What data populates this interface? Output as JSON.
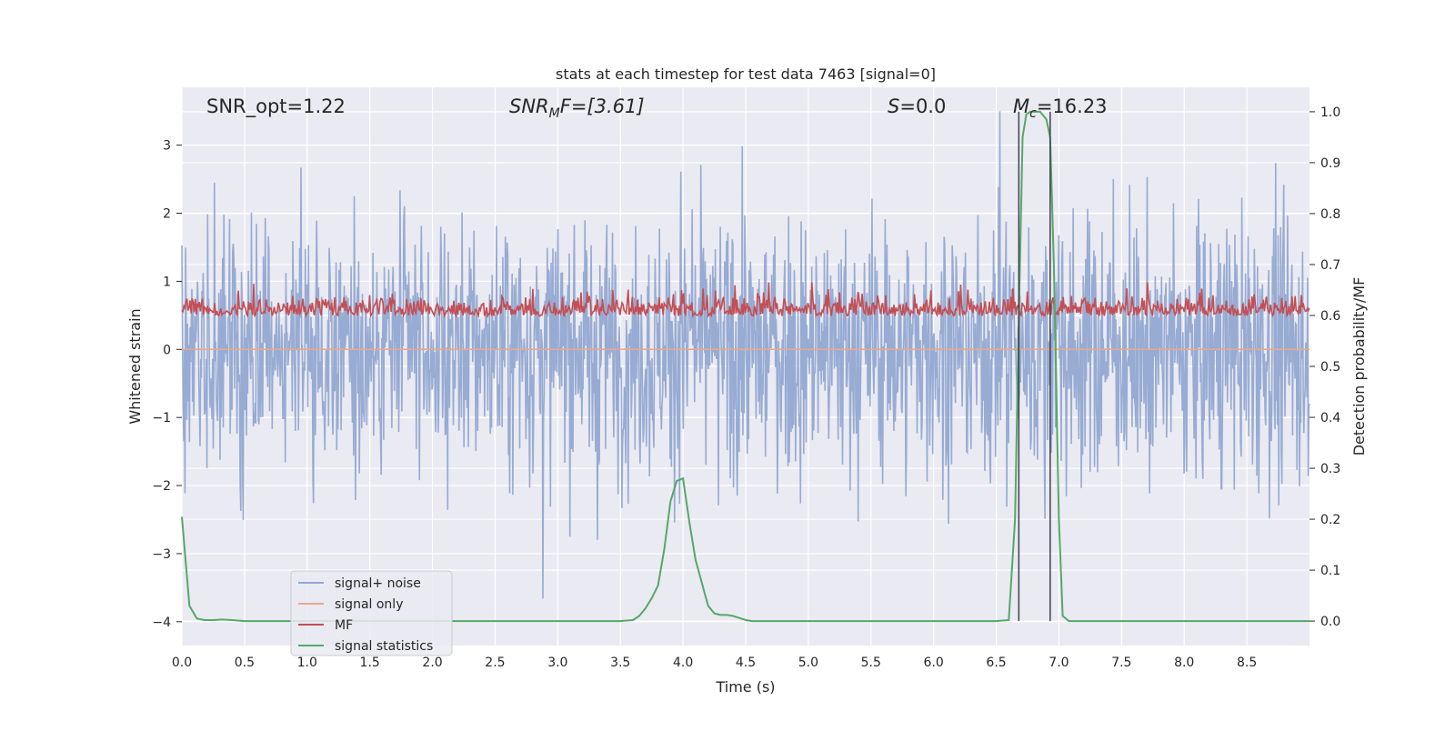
{
  "chart_data": {
    "type": "line",
    "title": "stats at each timestep for test data 7463 [signal=0]",
    "xlabel": "Time (s)",
    "ylabel": "Whitened strain",
    "ylabel_right": "Detection probability/MF",
    "xlim": [
      0.0,
      9.0
    ],
    "ylim": [
      -4.35,
      3.85
    ],
    "ylim_right": [
      -0.048,
      1.048
    ],
    "xticks": [
      "0.0",
      "0.5",
      "1.0",
      "1.5",
      "2.0",
      "2.5",
      "3.0",
      "3.5",
      "4.0",
      "4.5",
      "5.0",
      "5.5",
      "6.0",
      "6.5",
      "7.0",
      "7.5",
      "8.0",
      "8.5"
    ],
    "yticks": [
      "3",
      "2",
      "1",
      "0",
      "−1",
      "−2",
      "−3",
      "−4"
    ],
    "yticks_right": [
      "1.0",
      "0.9",
      "0.8",
      "0.7",
      "0.6",
      "0.5",
      "0.4",
      "0.3",
      "0.2",
      "0.1",
      "0.0"
    ],
    "grid": true,
    "legend_position": "lower-left",
    "annotations": {
      "snr_opt": "SNR_opt=1.22",
      "snr_mf_main": "SNR",
      "snr_mf_sub": "M",
      "snr_mf_rest": "F=[3.61]",
      "s_italic": "S",
      "s_rest": "=0.0",
      "mc_main": "M",
      "mc_sub": "c",
      "mc_rest": "=16.23"
    },
    "vlines_x": [
      6.68,
      6.93
    ],
    "series": [
      {
        "name": "signal+ noise",
        "color": "#92a8d1",
        "description_envelope_min": -3.9,
        "description_envelope_max": 3.5
      },
      {
        "name": "signal only",
        "color": "#e8a88a",
        "values_constant": 0.0
      },
      {
        "name": "MF",
        "color": "#c44e52",
        "axis": "right"
      },
      {
        "name": "signal statistics",
        "color": "#55a868",
        "axis": "right",
        "x": [
          0.0,
          0.06,
          0.12,
          0.18,
          0.25,
          0.32,
          0.4,
          0.5,
          0.7,
          1.0,
          2.0,
          3.0,
          3.5,
          3.6,
          3.65,
          3.7,
          3.75,
          3.8,
          3.85,
          3.9,
          3.95,
          4.0,
          4.05,
          4.1,
          4.15,
          4.2,
          4.25,
          4.3,
          4.35,
          4.4,
          4.45,
          4.5,
          4.55,
          4.6,
          4.7,
          5.0,
          6.0,
          6.5,
          6.6,
          6.65,
          6.68,
          6.71,
          6.74,
          6.77,
          6.8,
          6.85,
          6.9,
          6.93,
          6.96,
          7.0,
          7.03,
          7.08,
          7.5,
          8.0,
          8.5,
          9.0
        ],
        "values": [
          0.205,
          0.03,
          0.005,
          0.002,
          0.002,
          0.003,
          0.002,
          0.0,
          0.0,
          0.0,
          0.0,
          0.0,
          0.0,
          0.002,
          0.01,
          0.025,
          0.045,
          0.07,
          0.14,
          0.235,
          0.275,
          0.28,
          0.195,
          0.12,
          0.075,
          0.03,
          0.015,
          0.012,
          0.012,
          0.01,
          0.006,
          0.002,
          0.0,
          0.0,
          0.0,
          0.0,
          0.0,
          0.0,
          0.002,
          0.2,
          0.6,
          0.95,
          0.995,
          1.0,
          1.0,
          1.0,
          0.985,
          0.95,
          0.7,
          0.2,
          0.01,
          0.0,
          0.0,
          0.0,
          0.0,
          0.0
        ]
      }
    ]
  }
}
